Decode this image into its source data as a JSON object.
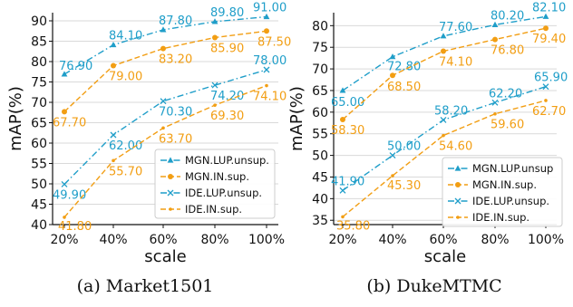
{
  "colors": {
    "blue": "#1f9ec9",
    "orange": "#f29e13",
    "grid": "#d9d9d9"
  },
  "chart_data": [
    {
      "type": "line",
      "caption": "(a) Market1501",
      "xlabel": "scale",
      "ylabel": "mAP(%)",
      "categories": [
        "20%",
        "40%",
        "60%",
        "80%",
        "100%"
      ],
      "ylim": [
        40,
        92
      ],
      "yticks": [
        40,
        45,
        50,
        55,
        60,
        65,
        70,
        75,
        80,
        85,
        90
      ],
      "grid": "horizontal",
      "legend_position": "lower-right",
      "series": [
        {
          "name": "MGN.LUP.unsup.",
          "color": "#1f9ec9",
          "dash": "dashdot",
          "marker": "triangle",
          "values": [
            76.9,
            84.1,
            87.8,
            89.8,
            91.0
          ],
          "labels": [
            "76.90",
            "84.10",
            "87.80",
            "89.80",
            "91.00"
          ]
        },
        {
          "name": "MGN.IN.sup.",
          "color": "#f29e13",
          "dash": "dashed",
          "marker": "circle",
          "values": [
            67.7,
            79.0,
            83.2,
            85.9,
            87.5
          ],
          "labels": [
            "67.70",
            "79.00",
            "83.20",
            "85.90",
            "87.50"
          ]
        },
        {
          "name": "IDE.LUP.unsup.",
          "color": "#1f9ec9",
          "dash": "dashdot",
          "marker": "x",
          "values": [
            49.9,
            62.0,
            70.3,
            74.2,
            78.0
          ],
          "labels": [
            "49.90",
            "62.00",
            "70.30",
            "74.20",
            "78.00"
          ]
        },
        {
          "name": "IDE.IN.sup.",
          "color": "#f29e13",
          "dash": "dashed",
          "marker": "point",
          "values": [
            41.8,
            55.7,
            63.7,
            69.3,
            74.1
          ],
          "labels": [
            "41.80",
            "55.70",
            "63.70",
            "69.30",
            "74.10"
          ]
        }
      ]
    },
    {
      "type": "line",
      "caption": "(b) DukeMTMC",
      "xlabel": "scale",
      "ylabel": "mAP(%)",
      "categories": [
        "20%",
        "40%",
        "60%",
        "80%",
        "100%"
      ],
      "ylim": [
        34,
        83
      ],
      "yticks": [
        35,
        40,
        45,
        50,
        55,
        60,
        65,
        70,
        75,
        80
      ],
      "grid": "horizontal",
      "legend_position": "lower-right",
      "series": [
        {
          "name": "MGN.LUP.unsup",
          "color": "#1f9ec9",
          "dash": "dashdot",
          "marker": "triangle",
          "values": [
            65.0,
            72.8,
            77.6,
            80.2,
            82.1
          ],
          "labels": [
            "65.00",
            "72.80",
            "77.60",
            "80.20",
            "82.10"
          ]
        },
        {
          "name": "MGN.IN.sup.",
          "color": "#f29e13",
          "dash": "dashed",
          "marker": "circle",
          "values": [
            58.3,
            68.5,
            74.1,
            76.8,
            79.4
          ],
          "labels": [
            "58.30",
            "68.50",
            "74.10",
            "76.80",
            "79.40"
          ]
        },
        {
          "name": "IDE.LUP.unsup.",
          "color": "#1f9ec9",
          "dash": "dashdot",
          "marker": "x",
          "values": [
            41.9,
            50.0,
            58.2,
            62.2,
            65.9
          ],
          "labels": [
            "41.90",
            "50.00",
            "58.20",
            "62.20",
            "65.90"
          ]
        },
        {
          "name": "IDE.IN.sup.",
          "color": "#f29e13",
          "dash": "dashed",
          "marker": "point",
          "values": [
            35.8,
            45.3,
            54.6,
            59.6,
            62.7
          ],
          "labels": [
            "35.80",
            "45.30",
            "54.60",
            "59.60",
            "62.70"
          ]
        }
      ]
    }
  ]
}
